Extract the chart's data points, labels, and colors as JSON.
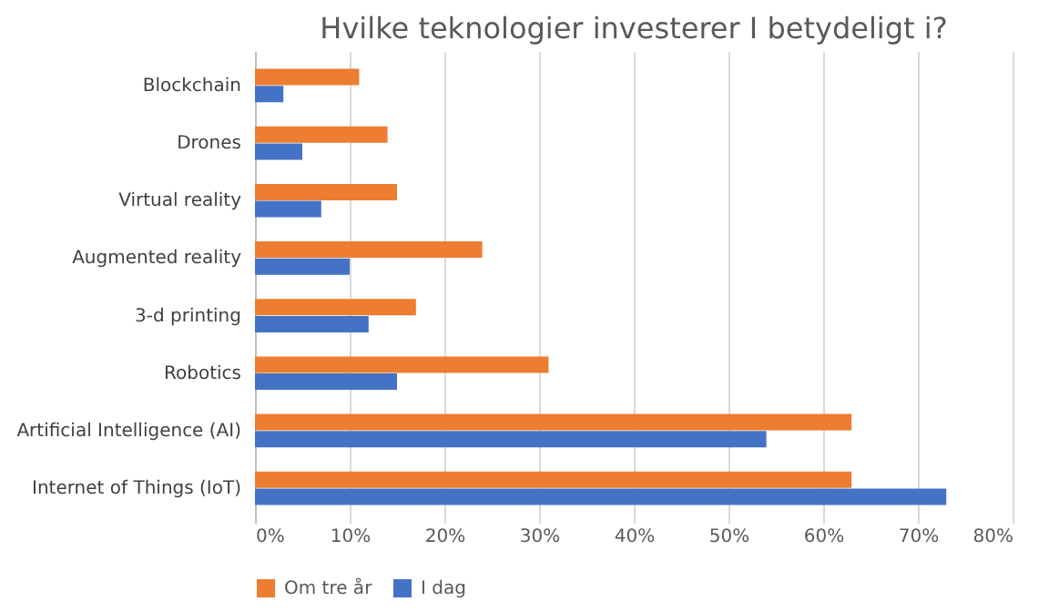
{
  "chart_data": {
    "type": "bar",
    "orientation": "horizontal",
    "title": "Hvilke teknologier investerer I betydeligt i?",
    "categories": [
      "Blockchain",
      "Drones",
      "Virtual reality",
      "Augmented reality",
      "3-d printing",
      "Robotics",
      "Artificial Intelligence (AI)",
      "Internet of Things (IoT)"
    ],
    "series": [
      {
        "name": "Om tre år",
        "color": "#ed7d31",
        "values": [
          11,
          14,
          15,
          24,
          17,
          31,
          63,
          63
        ]
      },
      {
        "name": "I dag",
        "color": "#4472c4",
        "values": [
          3,
          5,
          7,
          10,
          12,
          15,
          54,
          73
        ]
      }
    ],
    "xlim": [
      0,
      80
    ],
    "xticks": [
      {
        "value": 0,
        "label": "0%"
      },
      {
        "value": 10,
        "label": "10%"
      },
      {
        "value": 20,
        "label": "20%"
      },
      {
        "value": 30,
        "label": "30%"
      },
      {
        "value": 40,
        "label": "40%"
      },
      {
        "value": 50,
        "label": "50%"
      },
      {
        "value": 60,
        "label": "60%"
      },
      {
        "value": 70,
        "label": "70%"
      },
      {
        "value": 80,
        "label": "80%"
      }
    ],
    "grid": "x",
    "legend": "bottom"
  }
}
